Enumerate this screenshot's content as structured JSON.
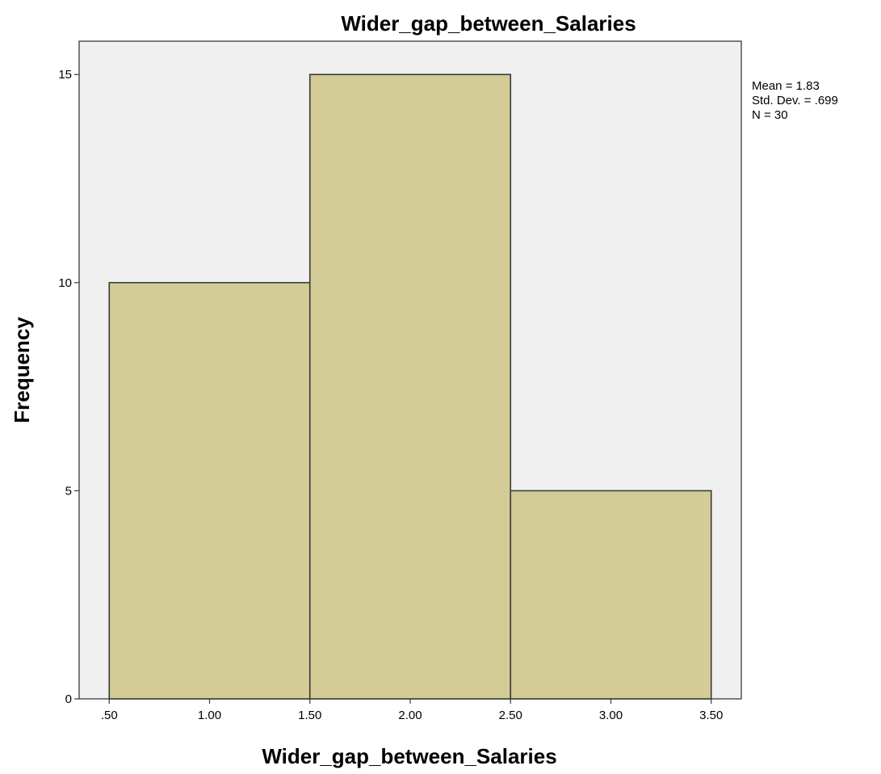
{
  "chart_data": {
    "type": "bar",
    "subtype": "histogram",
    "title": "Wider_gap_between_Salaries",
    "xlabel": "Wider_gap_between_Salaries",
    "ylabel": "Frequency",
    "bins": [
      {
        "from": 0.5,
        "to": 1.5,
        "count": 10
      },
      {
        "from": 1.5,
        "to": 2.5,
        "count": 15
      },
      {
        "from": 2.5,
        "to": 3.5,
        "count": 5
      }
    ],
    "xlim": [
      0.35,
      3.65
    ],
    "ylim": [
      0,
      15.8
    ],
    "x_ticks": [
      {
        "value": 0.5,
        "label": ".50"
      },
      {
        "value": 1.0,
        "label": "1.00"
      },
      {
        "value": 1.5,
        "label": "1.50"
      },
      {
        "value": 2.0,
        "label": "2.00"
      },
      {
        "value": 2.5,
        "label": "2.50"
      },
      {
        "value": 3.0,
        "label": "3.00"
      },
      {
        "value": 3.5,
        "label": "3.50"
      }
    ],
    "y_ticks": [
      {
        "value": 0,
        "label": "0"
      },
      {
        "value": 5,
        "label": "5"
      },
      {
        "value": 10,
        "label": "10"
      },
      {
        "value": 15,
        "label": "15"
      }
    ],
    "grid": false,
    "stats": {
      "mean": "Mean = 1.83",
      "std_dev": "Std. Dev. = .699",
      "n": "N = 30"
    },
    "colors": {
      "bar_fill": "#d3cc97",
      "bar_stroke": "#3a3a3a",
      "plot_background": "#f0f0f0",
      "frame": "#3a3a3a"
    }
  }
}
